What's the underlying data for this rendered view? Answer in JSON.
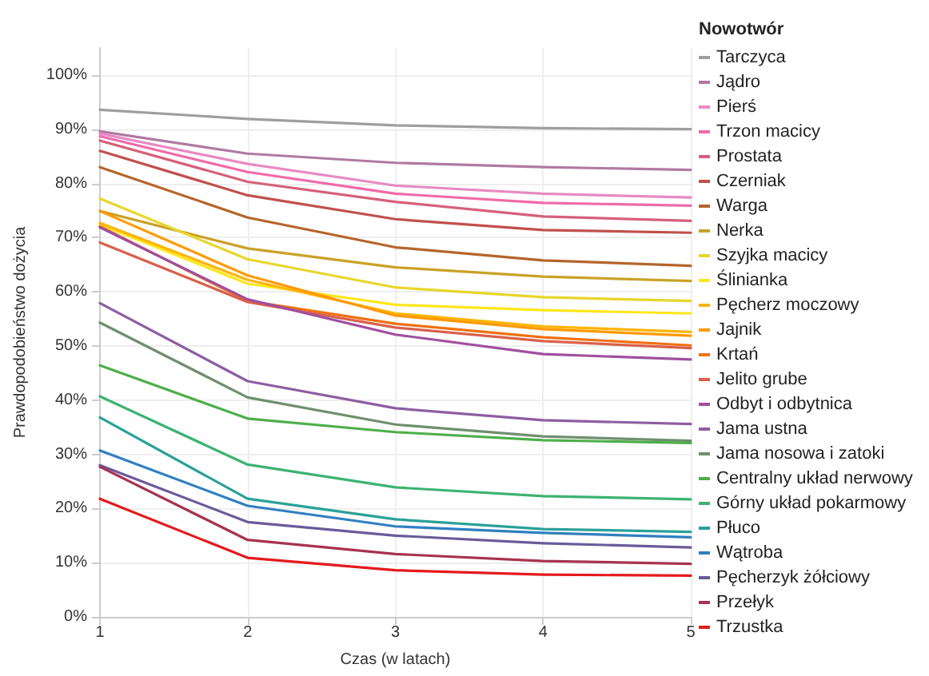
{
  "chart_data": {
    "type": "line",
    "xlabel": "Czas (w latach)",
    "ylabel": "Prawdopodobieństwo dożycia",
    "legend_title": "Nowotwór",
    "x": [
      1,
      2,
      3,
      4,
      5
    ],
    "xlim": [
      1,
      5
    ],
    "xticks": [
      1,
      2,
      3,
      4,
      5
    ],
    "ylim": [
      0,
      105
    ],
    "yticks": [
      {
        "value": 0,
        "label": "0%"
      },
      {
        "value": 10,
        "label": "10%"
      },
      {
        "value": 20,
        "label": "20%"
      },
      {
        "value": 30,
        "label": "30%"
      },
      {
        "value": 40,
        "label": "40%"
      },
      {
        "value": 50,
        "label": "50%"
      },
      {
        "value": 60,
        "label": "60%"
      },
      {
        "value": 70,
        "label": "70%"
      },
      {
        "value": 80,
        "label": "80%"
      },
      {
        "value": 90,
        "label": "90%"
      },
      {
        "value": 100,
        "label": "100%"
      }
    ],
    "grid": true,
    "legend": "right",
    "marker": "none",
    "line_style": "solid",
    "series": [
      {
        "name": "Tarczyca",
        "color": "#9e9e9e",
        "values": [
          93.6,
          91.9,
          90.7,
          90.2,
          90
        ]
      },
      {
        "name": "Jądro",
        "color": "#b07aa1",
        "values": [
          89.6,
          85.5,
          83.8,
          83,
          82.5
        ]
      },
      {
        "name": "Pierś",
        "color": "#e78ac3",
        "values": [
          89.2,
          83.6,
          79.6,
          78.1,
          77.4
        ]
      },
      {
        "name": "Trzon macicy",
        "color": "#f06aa8",
        "values": [
          88.7,
          82.1,
          78.1,
          76.4,
          75.9
        ]
      },
      {
        "name": "Prostata",
        "color": "#d5607a",
        "values": [
          87.9,
          80.3,
          76.6,
          73.9,
          73.1
        ]
      },
      {
        "name": "Czerniak",
        "color": "#c0504d",
        "values": [
          86,
          77.8,
          73.4,
          71.4,
          70.9
        ]
      },
      {
        "name": "Warga",
        "color": "#b5652a",
        "values": [
          83,
          73.7,
          68.2,
          65.8,
          64.8
        ]
      },
      {
        "name": "Nerka",
        "color": "#c9a227",
        "values": [
          74.9,
          68,
          64.5,
          62.8,
          62
        ]
      },
      {
        "name": "Szyjka macicy",
        "color": "#e8d62a",
        "values": [
          77.2,
          66,
          60.8,
          59,
          58.3
        ]
      },
      {
        "name": "Ślinianka",
        "color": "#ffe61a",
        "values": [
          72.4,
          61.5,
          57.6,
          56.6,
          56
        ]
      },
      {
        "name": "Pęcherz moczowy",
        "color": "#ffb300",
        "values": [
          72.7,
          62.2,
          56,
          53.6,
          52.6
        ]
      },
      {
        "name": "Jajnik",
        "color": "#ff9900",
        "values": [
          74.9,
          63,
          55.6,
          53.1,
          51.9
        ]
      },
      {
        "name": "Krtań",
        "color": "#f07010",
        "values": [
          72.1,
          58.3,
          54.1,
          51.6,
          50.1
        ]
      },
      {
        "name": "Jelito grube",
        "color": "#d9604a",
        "values": [
          69.1,
          58.1,
          53.4,
          50.9,
          49.6
        ]
      },
      {
        "name": "Odbyt i odbytnica",
        "color": "#a04f9f",
        "values": [
          71.9,
          58.6,
          52.1,
          48.5,
          47.5
        ]
      },
      {
        "name": "Jama ustna",
        "color": "#8e5ea2",
        "values": [
          57.9,
          43.5,
          38.5,
          36.3,
          35.6
        ]
      },
      {
        "name": "Jama nosowa i zatoki",
        "color": "#6f8f6f",
        "values": [
          54.3,
          40.5,
          35.5,
          33.3,
          32.5
        ]
      },
      {
        "name": "Centralny układ nerwowy",
        "color": "#4daf4a",
        "values": [
          46.4,
          36.6,
          34.1,
          32.6,
          32.1
        ]
      },
      {
        "name": "Górny układ pokarmowy",
        "color": "#3cb371",
        "values": [
          40.7,
          28.1,
          23.9,
          22.3,
          21.7
        ]
      },
      {
        "name": "Płuco",
        "color": "#2aa198",
        "values": [
          36.8,
          21.8,
          18,
          16.2,
          15.7
        ]
      },
      {
        "name": "Wątroba",
        "color": "#2f7fc1",
        "values": [
          30.7,
          20.5,
          16.7,
          15.5,
          14.7
        ]
      },
      {
        "name": "Pęcherzyk żółciowy",
        "color": "#6a5a9a",
        "values": [
          28,
          17.5,
          15,
          13.6,
          12.8
        ]
      },
      {
        "name": "Przełyk",
        "color": "#a83250",
        "values": [
          27.7,
          14.2,
          11.6,
          10.3,
          9.8
        ]
      },
      {
        "name": "Trzustka",
        "color": "#e41a1c",
        "values": [
          21.8,
          10.9,
          8.6,
          7.8,
          7.6
        ]
      }
    ]
  }
}
